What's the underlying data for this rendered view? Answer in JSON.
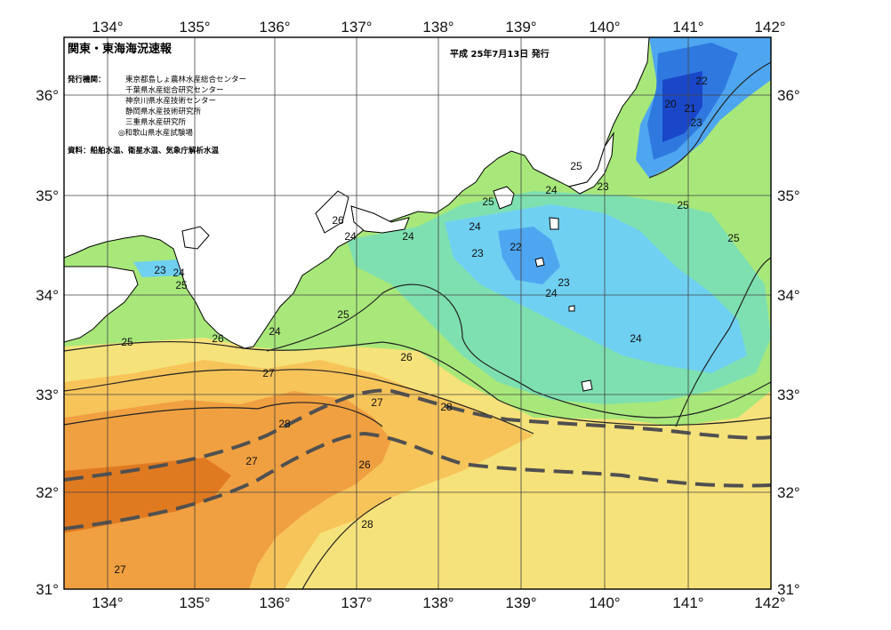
{
  "header": {
    "title": "関東・東海海況速報",
    "issue_date": "平成 25年7月13日 発行"
  },
  "publishers": {
    "label": "発行機関：",
    "items": [
      "東京都島しょ農林水産総合センター",
      "千葉県水産総合研究センター",
      "神奈川県水産技術センター",
      "静岡県水産技術研究所",
      "三重県水産研究所",
      "◎和歌山県水産試験場"
    ]
  },
  "source_note": "資料：船舶水温、衛星水温、気象庁解析水温",
  "axes": {
    "lon_labels": [
      "134°",
      "135°",
      "136°",
      "137°",
      "138°",
      "139°",
      "140°",
      "141°",
      "142°"
    ],
    "lat_labels": [
      "36°",
      "35°",
      "34°",
      "33°",
      "32°",
      "31°"
    ]
  },
  "isotherm_labels": [
    {
      "text": "22"
    },
    {
      "text": "20"
    },
    {
      "text": "21"
    },
    {
      "text": "23"
    },
    {
      "text": "25"
    },
    {
      "text": "23"
    },
    {
      "text": "24"
    },
    {
      "text": "25"
    },
    {
      "text": "25"
    },
    {
      "text": "24"
    },
    {
      "text": "24"
    },
    {
      "text": "26"
    },
    {
      "text": "24"
    },
    {
      "text": "23"
    },
    {
      "text": "22"
    },
    {
      "text": "23"
    },
    {
      "text": "24"
    },
    {
      "text": "23"
    },
    {
      "text": "24"
    },
    {
      "text": "25"
    },
    {
      "text": "25"
    },
    {
      "text": "25"
    },
    {
      "text": "24"
    },
    {
      "text": "24"
    },
    {
      "text": "25"
    },
    {
      "text": "26"
    },
    {
      "text": "26"
    },
    {
      "text": "27"
    },
    {
      "text": "27"
    },
    {
      "text": "28"
    },
    {
      "text": "28"
    },
    {
      "text": "27"
    },
    {
      "text": "26"
    },
    {
      "text": "28"
    },
    {
      "text": "27"
    }
  ],
  "colors": {
    "c20": "#1a47c8",
    "c21": "#2f78e0",
    "c22": "#4fa6f0",
    "c23": "#6fd0f2",
    "c24": "#7ee0b0",
    "c25": "#a8e87a",
    "c26": "#f6e27a",
    "c27": "#f7c45a",
    "c28": "#f0a040",
    "c29": "#e07a20",
    "land": "#ffffff",
    "kuroshio_axis": "#505050"
  }
}
